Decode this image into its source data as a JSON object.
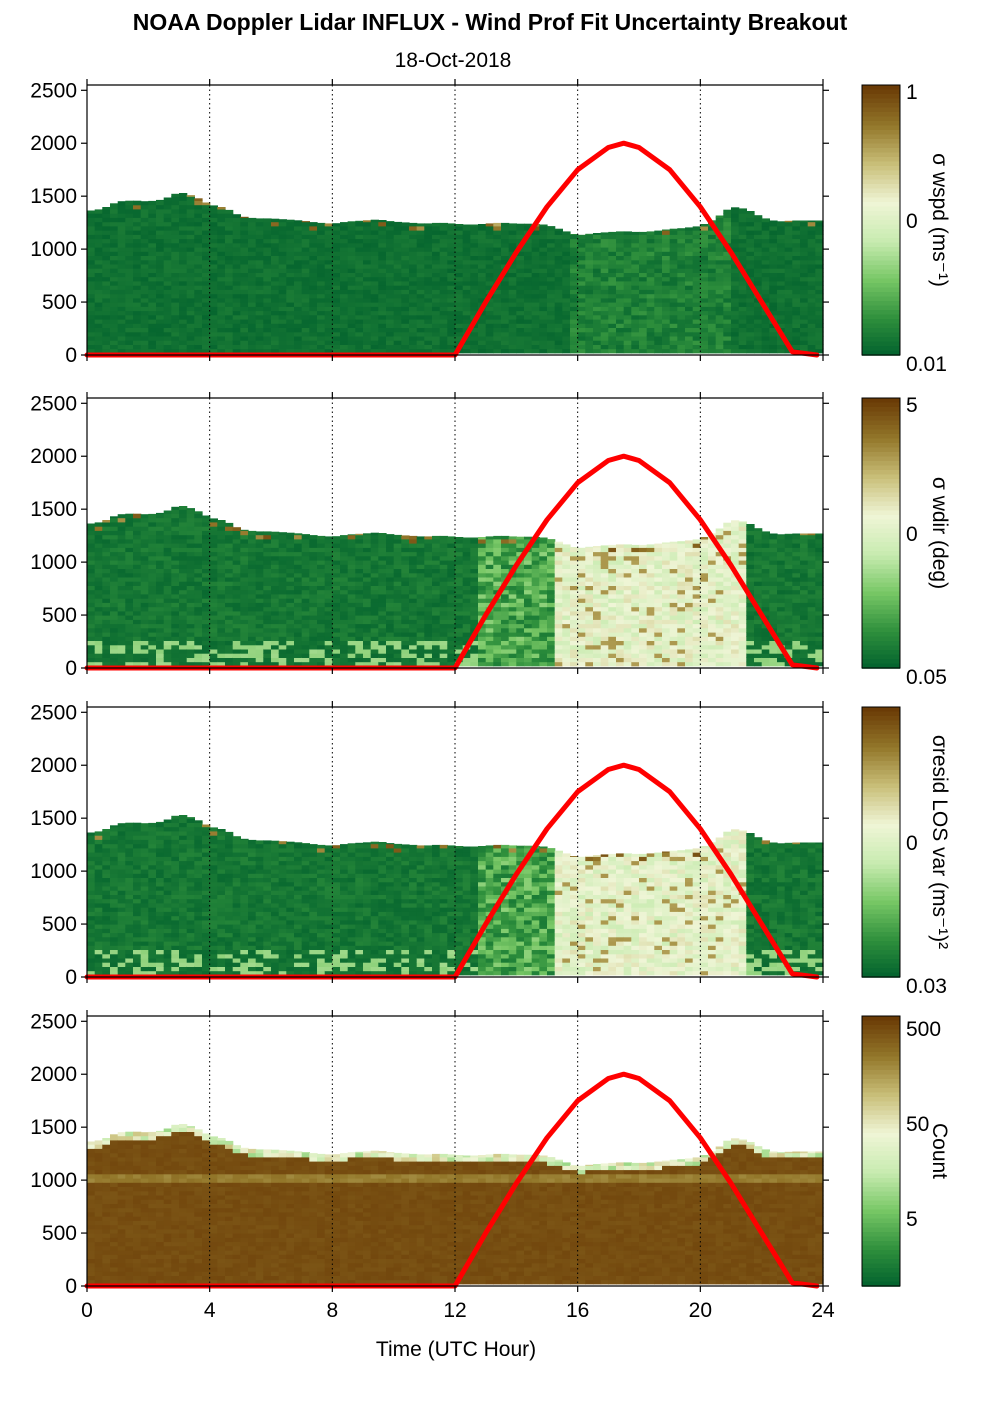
{
  "chart_data": {
    "type": "heatmap",
    "title": "NOAA Doppler Lidar INFLUX - Wind Prof Fit Uncertainty Breakout",
    "subtitle": "18-Oct-2018",
    "xlabel": "Time (UTC Hour)",
    "xlim": [
      0,
      24
    ],
    "x_ticks": [
      "0",
      "4",
      "8",
      "12",
      "16",
      "20",
      "24"
    ],
    "y_ticks": [
      "0",
      "500",
      "1000",
      "1500",
      "2000",
      "2500"
    ],
    "ylim": [
      0,
      2550
    ],
    "grid": "vertical dotted lines at 4, 8, 12, 16, 20, 24",
    "colormap": [
      "#00602d",
      "#2e8f3c",
      "#77c765",
      "#c8ebb0",
      "#eff5d6",
      "#c9bf79",
      "#93772a",
      "#6a3b06"
    ],
    "data_top_height_m": {
      "x": [
        0,
        0.5,
        1,
        1.5,
        2,
        2.5,
        3,
        3.5,
        4,
        4.5,
        5,
        5.5,
        6,
        6.5,
        7,
        7.5,
        8,
        8.5,
        9,
        9.5,
        10,
        10.5,
        11,
        11.5,
        12,
        12.5,
        13,
        13.5,
        14,
        14.5,
        15,
        15.5,
        16,
        16.5,
        17,
        17.5,
        18,
        18.5,
        19,
        19.5,
        20,
        20.5,
        21,
        21.5,
        22,
        22.5,
        23,
        23.5,
        23.8
      ],
      "y": [
        1360,
        1380,
        1450,
        1460,
        1450,
        1470,
        1540,
        1500,
        1420,
        1390,
        1310,
        1290,
        1290,
        1280,
        1270,
        1250,
        1240,
        1260,
        1270,
        1280,
        1260,
        1250,
        1240,
        1250,
        1240,
        1230,
        1240,
        1250,
        1240,
        1240,
        1230,
        1180,
        1130,
        1150,
        1160,
        1170,
        1160,
        1170,
        1190,
        1200,
        1220,
        1290,
        1400,
        1380,
        1300,
        1260,
        1270,
        1270,
        1270
      ]
    },
    "red_line": {
      "x": [
        0,
        12,
        13,
        14,
        15,
        16,
        17,
        17.5,
        18,
        19,
        20,
        21,
        22,
        23,
        23.8
      ],
      "y": [
        0,
        0,
        500,
        970,
        1400,
        1750,
        1960,
        2000,
        1960,
        1750,
        1400,
        970,
        500,
        30,
        0
      ]
    },
    "panels": [
      {
        "colorbar_label": "σ wspd (ms⁻¹)",
        "colorbar_ticks": [
          "1",
          "0",
          "0.01"
        ],
        "regime": "low"
      },
      {
        "colorbar_label": "σ wdir (deg)",
        "colorbar_ticks": [
          "5",
          "0",
          "0.05"
        ],
        "regime": "moderate"
      },
      {
        "colorbar_label": "σresid LOS var (ms⁻¹)²",
        "colorbar_ticks": [
          "0",
          "0.03"
        ],
        "regime": "moderate"
      },
      {
        "colorbar_label": "Count",
        "colorbar_ticks": [
          "500",
          "50",
          "5"
        ],
        "regime": "count"
      }
    ]
  }
}
